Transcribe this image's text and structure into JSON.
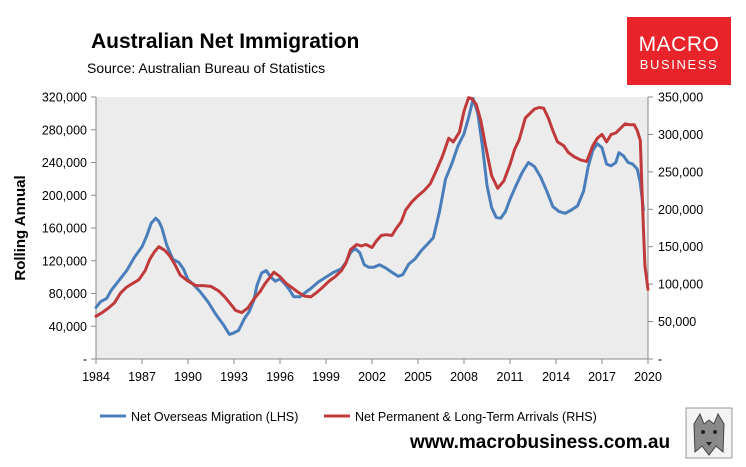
{
  "chart_data": {
    "type": "line",
    "title": "Australian Net Immigration",
    "subtitle": "Source: Australian Bureau of Statistics",
    "ylabel": "Rolling Annual",
    "xlim": [
      1984,
      2020
    ],
    "ylim_left": [
      0,
      320000
    ],
    "ylim_right": [
      0,
      350000
    ],
    "x_ticks": [
      "1984",
      "1987",
      "1990",
      "1993",
      "1996",
      "1999",
      "2002",
      "2005",
      "2008",
      "2011",
      "2014",
      "2017",
      "2020"
    ],
    "x_tick_values": [
      1984,
      1987,
      1990,
      1993,
      1996,
      1999,
      2002,
      2005,
      2008,
      2011,
      2014,
      2017,
      2020
    ],
    "y_left_ticks": [
      "-",
      "40,000",
      "80,000",
      "120,000",
      "160,000",
      "200,000",
      "240,000",
      "280,000",
      "320,000"
    ],
    "y_left_tick_values": [
      0,
      40000,
      80000,
      120000,
      160000,
      200000,
      240000,
      280000,
      320000
    ],
    "y_right_ticks": [
      "-",
      "50,000",
      "100,000",
      "150,000",
      "200,000",
      "250,000",
      "300,000",
      "350,000"
    ],
    "y_right_tick_values": [
      0,
      50000,
      100000,
      150000,
      200000,
      250000,
      300000,
      350000
    ],
    "legend_position": "bottom",
    "grid": false,
    "series": [
      {
        "name": "Net Overseas Migration (LHS)",
        "axis": "left",
        "color": "#4a7ebb",
        "x": [
          1984,
          1984.3,
          1984.7,
          1985,
          1985.5,
          1986,
          1986.5,
          1987,
          1987.3,
          1987.6,
          1987.9,
          1988.1,
          1988.3,
          1988.6,
          1989,
          1989.4,
          1989.7,
          1990,
          1990.3,
          1990.8,
          1991.3,
          1991.8,
          1992.3,
          1992.7,
          1993,
          1993.3,
          1993.7,
          1994,
          1994.3,
          1994.5,
          1994.8,
          1995.1,
          1995.4,
          1995.7,
          1996,
          1996.3,
          1996.6,
          1996.9,
          1997.3,
          1997.7,
          1998,
          1998.5,
          1999,
          1999.5,
          2000,
          2000.3,
          2000.6,
          2000.9,
          2001.2,
          2001.5,
          2001.8,
          2002.1,
          2002.5,
          2002.9,
          2003.3,
          2003.7,
          2004,
          2004.4,
          2004.8,
          2005.2,
          2005.6,
          2006,
          2006.4,
          2006.8,
          2007.2,
          2007.6,
          2008,
          2008.3,
          2008.6,
          2008.9,
          2009.2,
          2009.5,
          2009.8,
          2010.1,
          2010.4,
          2010.7,
          2011,
          2011.4,
          2011.8,
          2012.2,
          2012.6,
          2013,
          2013.4,
          2013.8,
          2014.2,
          2014.6,
          2015,
          2015.4,
          2015.8,
          2016.1,
          2016.4,
          2016.7,
          2017,
          2017.3,
          2017.6,
          2017.9,
          2018.1,
          2018.4,
          2018.7,
          2019,
          2019.3,
          2019.5,
          2019.7
        ],
        "values": [
          63000,
          70000,
          74000,
          84000,
          96000,
          108000,
          124000,
          137000,
          150000,
          166000,
          172000,
          168000,
          160000,
          140000,
          122000,
          118000,
          110000,
          97000,
          92000,
          82000,
          70000,
          55000,
          42000,
          30000,
          32000,
          35000,
          50000,
          58000,
          72000,
          90000,
          105000,
          108000,
          100000,
          95000,
          98000,
          92000,
          85000,
          76000,
          76000,
          82000,
          86000,
          94000,
          100000,
          106000,
          110000,
          118000,
          130000,
          135000,
          130000,
          115000,
          112000,
          112000,
          115000,
          111000,
          106000,
          101000,
          103000,
          116000,
          122000,
          132000,
          140000,
          148000,
          180000,
          220000,
          238000,
          260000,
          275000,
          295000,
          318000,
          300000,
          260000,
          212000,
          185000,
          173000,
          172000,
          180000,
          195000,
          212000,
          228000,
          240000,
          235000,
          222000,
          205000,
          186000,
          180000,
          178000,
          182000,
          187000,
          205000,
          235000,
          255000,
          263000,
          258000,
          238000,
          236000,
          240000,
          252000,
          248000,
          240000,
          238000,
          232000,
          215000,
          182000
        ]
      },
      {
        "name": "Net Permanent & Long-Term Arrivals (RHS)",
        "axis": "right",
        "color": "#c0393b",
        "x": [
          1984,
          1984.4,
          1984.8,
          1985.2,
          1985.6,
          1986,
          1986.4,
          1986.8,
          1987.2,
          1987.5,
          1987.8,
          1988.1,
          1988.5,
          1988.8,
          1989.1,
          1989.5,
          1990,
          1990.5,
          1991,
          1991.5,
          1992,
          1992.4,
          1992.8,
          1993.1,
          1993.5,
          1993.9,
          1994.3,
          1994.7,
          1995,
          1995.3,
          1995.6,
          1996,
          1996.4,
          1996.8,
          1997.2,
          1997.6,
          1998,
          1998.4,
          1998.8,
          1999.2,
          1999.6,
          2000,
          2000.3,
          2000.6,
          2001,
          2001.3,
          2001.6,
          2002,
          2002.3,
          2002.6,
          2002.9,
          2003.3,
          2003.6,
          2003.9,
          2004.2,
          2004.6,
          2005,
          2005.4,
          2005.8,
          2006.2,
          2006.6,
          2007,
          2007.3,
          2007.7,
          2008,
          2008.3,
          2008.5,
          2008.8,
          2009.1,
          2009.4,
          2009.8,
          2010.2,
          2010.6,
          2011,
          2011.3,
          2011.6,
          2012,
          2012.3,
          2012.6,
          2012.9,
          2013.2,
          2013.5,
          2013.8,
          2014.1,
          2014.5,
          2014.8,
          2015.2,
          2015.6,
          2016,
          2016.4,
          2016.7,
          2017,
          2017.3,
          2017.6,
          2017.9,
          2018.2,
          2018.5,
          2018.8,
          2019.1,
          2019.3,
          2019.5,
          2019.6,
          2019.7,
          2019.8,
          2020
        ],
        "values": [
          57000,
          62000,
          68000,
          75000,
          88000,
          96000,
          101000,
          106000,
          118000,
          133000,
          143000,
          150000,
          145000,
          138000,
          128000,
          112000,
          104000,
          98000,
          98000,
          97000,
          91000,
          83000,
          73000,
          65000,
          62000,
          68000,
          80000,
          90000,
          100000,
          108000,
          116000,
          110000,
          101000,
          95000,
          89000,
          84000,
          83000,
          89000,
          96000,
          104000,
          110000,
          118000,
          128000,
          146000,
          153000,
          151000,
          153000,
          149000,
          158000,
          165000,
          166000,
          165000,
          175000,
          183000,
          199000,
          210000,
          218000,
          225000,
          234000,
          252000,
          271000,
          295000,
          290000,
          303000,
          331000,
          349000,
          348000,
          340000,
          318000,
          285000,
          245000,
          228000,
          238000,
          260000,
          280000,
          293000,
          322000,
          328000,
          334000,
          336000,
          335000,
          322000,
          305000,
          290000,
          285000,
          276000,
          270000,
          266000,
          264000,
          285000,
          295000,
          300000,
          290000,
          300000,
          302000,
          308000,
          314000,
          313000,
          313000,
          305000,
          292000,
          230000,
          175000,
          125000,
          93000
        ]
      }
    ]
  },
  "legend": {
    "items": [
      {
        "label": "Net Overseas Migration (LHS)",
        "color": "#4a7ebb"
      },
      {
        "label": "Net Permanent & Long-Term Arrivals (RHS)",
        "color": "#c0393b"
      }
    ]
  },
  "branding": {
    "logo_top": "MACRO",
    "logo_bottom": "BUSINESS",
    "logo_color": "#e8232a",
    "url": "www.macrobusiness.com.au"
  },
  "colors": {
    "plot_background": "#ececec",
    "axis": "#888888"
  }
}
